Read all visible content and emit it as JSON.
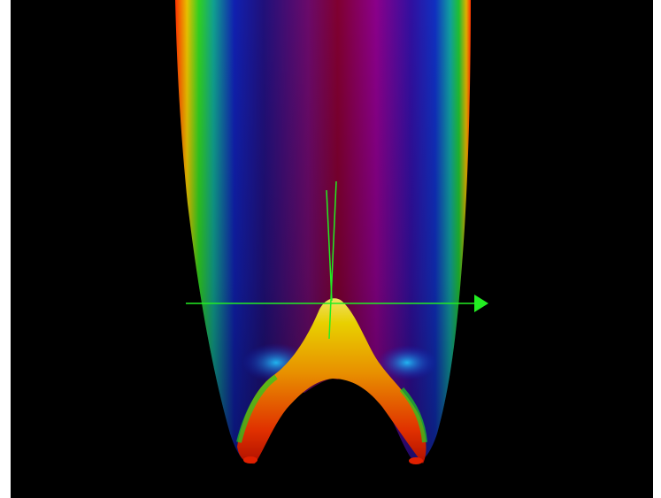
{
  "viewport": {
    "background": "#000000",
    "surface": {
      "colormap": [
        "#ff2000",
        "#ffc800",
        "#e6ff00",
        "#00e01e",
        "#00aaaa",
        "#1010d0",
        "#3a0a6e",
        "#80008a",
        "#800030"
      ],
      "description_name": "rainbow-shaded-surface"
    },
    "axes": {
      "color": "#22ee22",
      "x_arrow": "x-axis-arrow",
      "vertical": "vertical-axis-lines"
    }
  }
}
